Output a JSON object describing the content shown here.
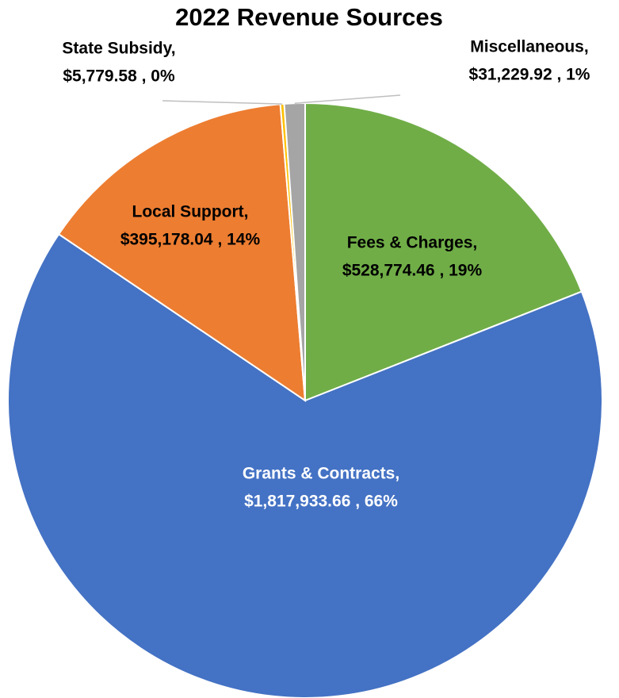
{
  "chart_data": {
    "type": "pie",
    "title": "2022 Revenue Sources",
    "categories": [
      "Fees & Charges,",
      "Grants & Contracts,",
      "Local Support,",
      "State Subsidy,",
      "Miscellaneous,"
    ],
    "values": [
      528774.46,
      1817933.66,
      395178.04,
      5779.58,
      31229.92
    ],
    "value_labels": [
      "$528,774.46 , 19%",
      "$1,817,933.66 , 66%",
      "$395,178.04 , 14%",
      "$5,779.58 , 0%",
      "$31,229.92 , 1%"
    ],
    "colors": [
      "#70ad47",
      "#4472c4",
      "#ed7d31",
      "#ffc000",
      "#a5a5a5"
    ]
  }
}
